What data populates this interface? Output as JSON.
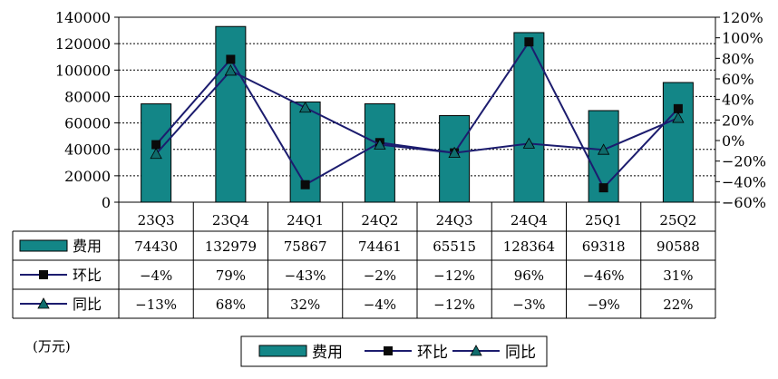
{
  "unit_label": "(万元)",
  "colors": {
    "bar": "#138687",
    "line": "#1c1c6e",
    "marker": "#0a0a0a",
    "triangle": "#0f6c6c",
    "grid": "#000000"
  },
  "chart_data": {
    "type": "bar",
    "categories": [
      "23Q3",
      "23Q4",
      "24Q1",
      "24Q2",
      "24Q3",
      "24Q4",
      "25Q1",
      "25Q2"
    ],
    "series": [
      {
        "name": "费用",
        "type": "bar",
        "axis": "left",
        "values": [
          74430,
          132979,
          75867,
          74461,
          65515,
          128364,
          69318,
          90588
        ]
      },
      {
        "name": "环比",
        "type": "line",
        "axis": "right",
        "marker": "square",
        "values": [
          -4,
          79,
          -43,
          -2,
          -12,
          96,
          -46,
          31
        ]
      },
      {
        "name": "同比",
        "type": "line",
        "axis": "right",
        "marker": "triangle",
        "values": [
          -13,
          68,
          32,
          -4,
          -12,
          -3,
          -9,
          22
        ]
      }
    ],
    "y_left": {
      "ylim": [
        0,
        140000
      ],
      "ticks": [
        "0",
        "20000",
        "40000",
        "60000",
        "80000",
        "100000",
        "120000",
        "140000"
      ]
    },
    "y_right": {
      "ylim": [
        -60,
        120
      ],
      "ticks": [
        "-60%",
        "-40%",
        "-20%",
        "0%",
        "20%",
        "40%",
        "60%",
        "80%",
        "100%",
        "120%"
      ]
    },
    "table": {
      "rows": [
        {
          "label": "费用",
          "cells": [
            "74430",
            "132979",
            "75867",
            "74461",
            "65515",
            "128364",
            "69318",
            "90588"
          ]
        },
        {
          "label": "环比",
          "cells": [
            "-4%",
            "79%",
            "-43%",
            "-2%",
            "-12%",
            "96%",
            "-46%",
            "31%"
          ]
        },
        {
          "label": "同比",
          "cells": [
            "-13%",
            "68%",
            "32%",
            "-4%",
            "-12%",
            "-3%",
            "-9%",
            "22%"
          ]
        }
      ]
    },
    "legend": {
      "placement": "bottom",
      "items": [
        "费用",
        "环比",
        "同比"
      ]
    },
    "grid": true
  }
}
